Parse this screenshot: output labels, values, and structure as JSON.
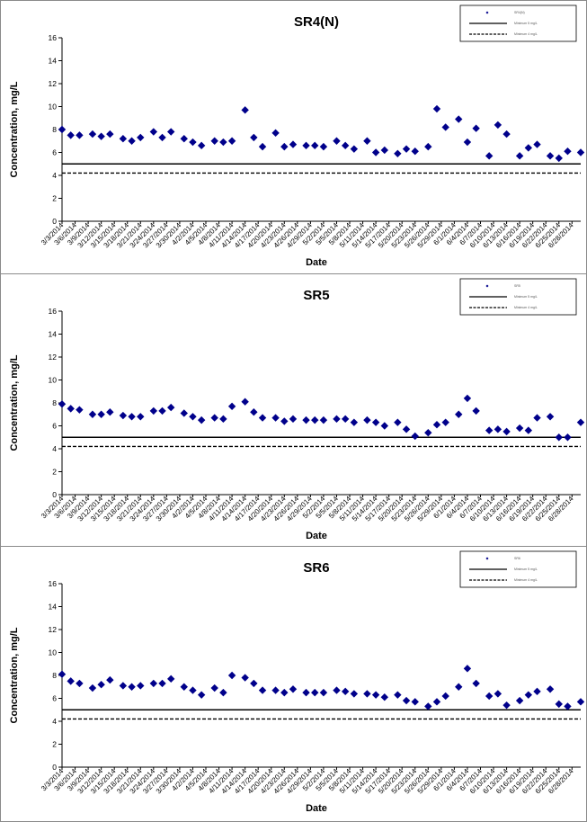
{
  "colors": {
    "marker": "#00008B",
    "standard_line": "#000000",
    "background": "#ffffff"
  },
  "x_dates": [
    "3/3/2014",
    "3/6/2014",
    "3/9/2014",
    "3/12/2014",
    "3/15/2014",
    "3/18/2014",
    "3/21/2014",
    "3/24/2014",
    "3/27/2014",
    "3/30/2014",
    "4/2/2014",
    "4/5/2014",
    "4/8/2014",
    "4/11/2014",
    "4/14/2014",
    "4/17/2014",
    "4/20/2014",
    "4/23/2014",
    "4/26/2014",
    "4/29/2014",
    "5/2/2014",
    "5/5/2014",
    "5/8/2014",
    "5/11/2014",
    "5/14/2014",
    "5/17/2014",
    "5/20/2014",
    "5/23/2014",
    "5/26/2014",
    "5/29/2014",
    "6/1/2014",
    "6/4/2014",
    "6/7/2014",
    "6/10/2014",
    "6/13/2014",
    "6/16/2014",
    "6/19/2014",
    "6/22/2014",
    "6/25/2014",
    "6/28/2014"
  ],
  "y_ticks": [
    0,
    2,
    4,
    6,
    8,
    10,
    12,
    14,
    16
  ],
  "chart_data": [
    {
      "type": "scatter",
      "title": "SR4(N)",
      "xlabel": "Date",
      "ylabel": "Concentration, mg/L",
      "ylim": [
        0,
        16
      ],
      "xlim": [
        "3/3/2014",
        "6/30/2014"
      ],
      "grid": false,
      "legend_position": "top-right",
      "legend": [
        {
          "label": "SR4(N)",
          "style": "marker"
        },
        {
          "label": "Minimum 5 mg/L",
          "style": "solid"
        },
        {
          "label": "Minimum 4 mg/L",
          "style": "dashed"
        }
      ],
      "reference_lines": [
        {
          "y": 5.0,
          "style": "solid"
        },
        {
          "y": 4.2,
          "style": "dashed"
        }
      ],
      "x": [
        "3/3/2014",
        "3/5/2014",
        "3/7/2014",
        "3/10/2014",
        "3/12/2014",
        "3/14/2014",
        "3/17/2014",
        "3/19/2014",
        "3/21/2014",
        "3/24/2014",
        "3/26/2014",
        "3/28/2014",
        "3/31/2014",
        "4/2/2014",
        "4/4/2014",
        "4/7/2014",
        "4/9/2014",
        "4/11/2014",
        "4/14/2014",
        "4/16/2014",
        "4/18/2014",
        "4/21/2014",
        "4/23/2014",
        "4/25/2014",
        "4/28/2014",
        "4/30/2014",
        "5/2/2014",
        "5/5/2014",
        "5/7/2014",
        "5/9/2014",
        "5/12/2014",
        "5/14/2014",
        "5/16/2014",
        "5/19/2014",
        "5/21/2014",
        "5/23/2014",
        "5/26/2014",
        "5/28/2014",
        "5/30/2014",
        "6/2/2014",
        "6/4/2014",
        "6/6/2014",
        "6/9/2014",
        "6/11/2014",
        "6/13/2014",
        "6/16/2014",
        "6/18/2014",
        "6/20/2014",
        "6/23/2014",
        "6/25/2014",
        "6/27/2014",
        "6/30/2014"
      ],
      "values": [
        8.0,
        7.5,
        7.5,
        7.6,
        7.4,
        7.6,
        7.2,
        7.0,
        7.3,
        7.8,
        7.3,
        7.8,
        7.2,
        6.9,
        6.6,
        7.0,
        6.9,
        7.0,
        9.7,
        7.3,
        6.5,
        7.7,
        6.5,
        6.7,
        6.6,
        6.6,
        6.5,
        7.0,
        6.6,
        6.3,
        7.0,
        6.0,
        6.2,
        5.9,
        6.3,
        6.1,
        6.5,
        9.8,
        8.2,
        8.9,
        6.9,
        8.1,
        5.7,
        8.4,
        7.6,
        5.7,
        6.4,
        6.7,
        5.7,
        5.5,
        6.1,
        6.0
      ]
    },
    {
      "type": "scatter",
      "title": "SR5",
      "xlabel": "Date",
      "ylabel": "Concentration, mg/L",
      "ylim": [
        0,
        16
      ],
      "xlim": [
        "3/3/2014",
        "6/30/2014"
      ],
      "grid": false,
      "legend_position": "top-right",
      "legend": [
        {
          "label": "SR5",
          "style": "marker"
        },
        {
          "label": "Minimum 5 mg/L",
          "style": "solid"
        },
        {
          "label": "Minimum 4 mg/L",
          "style": "dashed"
        }
      ],
      "reference_lines": [
        {
          "y": 5.0,
          "style": "solid"
        },
        {
          "y": 4.2,
          "style": "dashed"
        }
      ],
      "x": [
        "3/3/2014",
        "3/5/2014",
        "3/7/2014",
        "3/10/2014",
        "3/12/2014",
        "3/14/2014",
        "3/17/2014",
        "3/19/2014",
        "3/21/2014",
        "3/24/2014",
        "3/26/2014",
        "3/28/2014",
        "3/31/2014",
        "4/2/2014",
        "4/4/2014",
        "4/7/2014",
        "4/9/2014",
        "4/11/2014",
        "4/14/2014",
        "4/16/2014",
        "4/18/2014",
        "4/21/2014",
        "4/23/2014",
        "4/25/2014",
        "4/28/2014",
        "4/30/2014",
        "5/2/2014",
        "5/5/2014",
        "5/7/2014",
        "5/9/2014",
        "5/12/2014",
        "5/14/2014",
        "5/16/2014",
        "5/19/2014",
        "5/21/2014",
        "5/23/2014",
        "5/26/2014",
        "5/28/2014",
        "5/30/2014",
        "6/2/2014",
        "6/4/2014",
        "6/6/2014",
        "6/9/2014",
        "6/11/2014",
        "6/13/2014",
        "6/16/2014",
        "6/18/2014",
        "6/20/2014",
        "6/23/2014",
        "6/25/2014",
        "6/27/2014",
        "6/30/2014"
      ],
      "values": [
        7.9,
        7.5,
        7.4,
        7.0,
        7.0,
        7.2,
        6.9,
        6.8,
        6.8,
        7.3,
        7.3,
        7.6,
        7.1,
        6.8,
        6.5,
        6.7,
        6.6,
        7.7,
        8.1,
        7.2,
        6.7,
        6.7,
        6.4,
        6.6,
        6.5,
        6.5,
        6.5,
        6.6,
        6.6,
        6.3,
        6.5,
        6.3,
        6.0,
        6.3,
        5.7,
        5.1,
        5.4,
        6.1,
        6.3,
        7.0,
        8.4,
        7.3,
        5.6,
        5.7,
        5.5,
        5.8,
        5.6,
        6.7,
        6.8,
        5.0,
        5.0,
        6.3
      ]
    },
    {
      "type": "scatter",
      "title": "SR6",
      "xlabel": "Date",
      "ylabel": "Concentration, mg/L",
      "ylim": [
        0,
        16
      ],
      "xlim": [
        "3/3/2014",
        "6/30/2014"
      ],
      "grid": false,
      "legend_position": "top-right",
      "legend": [
        {
          "label": "SR6",
          "style": "marker"
        },
        {
          "label": "Minimum 5 mg/L",
          "style": "solid"
        },
        {
          "label": "Minimum 4 mg/L",
          "style": "dashed"
        }
      ],
      "reference_lines": [
        {
          "y": 5.0,
          "style": "solid"
        },
        {
          "y": 4.2,
          "style": "dashed"
        }
      ],
      "x": [
        "3/3/2014",
        "3/5/2014",
        "3/7/2014",
        "3/10/2014",
        "3/12/2014",
        "3/14/2014",
        "3/17/2014",
        "3/19/2014",
        "3/21/2014",
        "3/24/2014",
        "3/26/2014",
        "3/28/2014",
        "3/31/2014",
        "4/2/2014",
        "4/4/2014",
        "4/7/2014",
        "4/9/2014",
        "4/11/2014",
        "4/14/2014",
        "4/16/2014",
        "4/18/2014",
        "4/21/2014",
        "4/23/2014",
        "4/25/2014",
        "4/28/2014",
        "4/30/2014",
        "5/2/2014",
        "5/5/2014",
        "5/7/2014",
        "5/9/2014",
        "5/12/2014",
        "5/14/2014",
        "5/16/2014",
        "5/19/2014",
        "5/21/2014",
        "5/23/2014",
        "5/26/2014",
        "5/28/2014",
        "5/30/2014",
        "6/2/2014",
        "6/4/2014",
        "6/6/2014",
        "6/9/2014",
        "6/11/2014",
        "6/13/2014",
        "6/16/2014",
        "6/18/2014",
        "6/20/2014",
        "6/23/2014",
        "6/25/2014",
        "6/27/2014",
        "6/30/2014"
      ],
      "values": [
        8.1,
        7.5,
        7.3,
        6.9,
        7.2,
        7.6,
        7.1,
        7.0,
        7.1,
        7.3,
        7.3,
        7.7,
        7.0,
        6.7,
        6.3,
        6.9,
        6.5,
        8.0,
        7.8,
        7.3,
        6.7,
        6.7,
        6.5,
        6.8,
        6.5,
        6.5,
        6.5,
        6.7,
        6.6,
        6.4,
        6.4,
        6.3,
        6.1,
        6.3,
        5.8,
        5.7,
        5.3,
        5.7,
        6.2,
        7.0,
        8.6,
        7.3,
        6.2,
        6.4,
        5.4,
        5.8,
        6.3,
        6.6,
        6.8,
        5.5,
        5.3,
        5.7
      ]
    }
  ]
}
